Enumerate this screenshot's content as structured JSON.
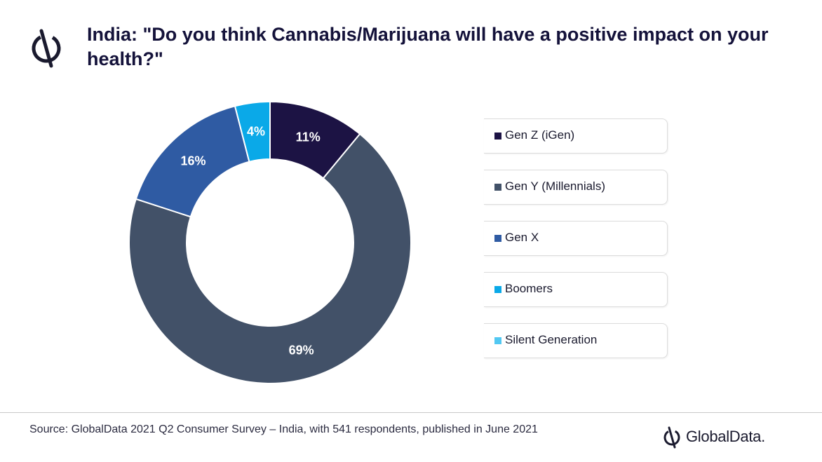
{
  "header": {
    "title": "India: \"Do you think Cannabis/Marijuana will have a positive impact on your health?\"",
    "logo_icon": "globaldata-logo-icon"
  },
  "chart_data": {
    "type": "pie",
    "title": "India: \"Do you think Cannabis/Marijuana will have a positive impact on your health?\"",
    "categories": [
      "Gen Z (iGen)",
      "Gen Y (Millennials)",
      "Gen X",
      "Boomers",
      "Silent Generation"
    ],
    "values": [
      11,
      69,
      16,
      4,
      0
    ],
    "data_labels": [
      "11%",
      "69%",
      "16%",
      "4%",
      ""
    ],
    "colors": [
      "#1c1344",
      "#425168",
      "#2f5ba3",
      "#0aa9e8",
      "#52c8f2"
    ],
    "donut": true,
    "legend_position": "right"
  },
  "footer": {
    "source": "Source: GlobalData 2021 Q2 Consumer Survey – India, with 541 respondents, published in June 2021",
    "brand": "GlobalData."
  }
}
